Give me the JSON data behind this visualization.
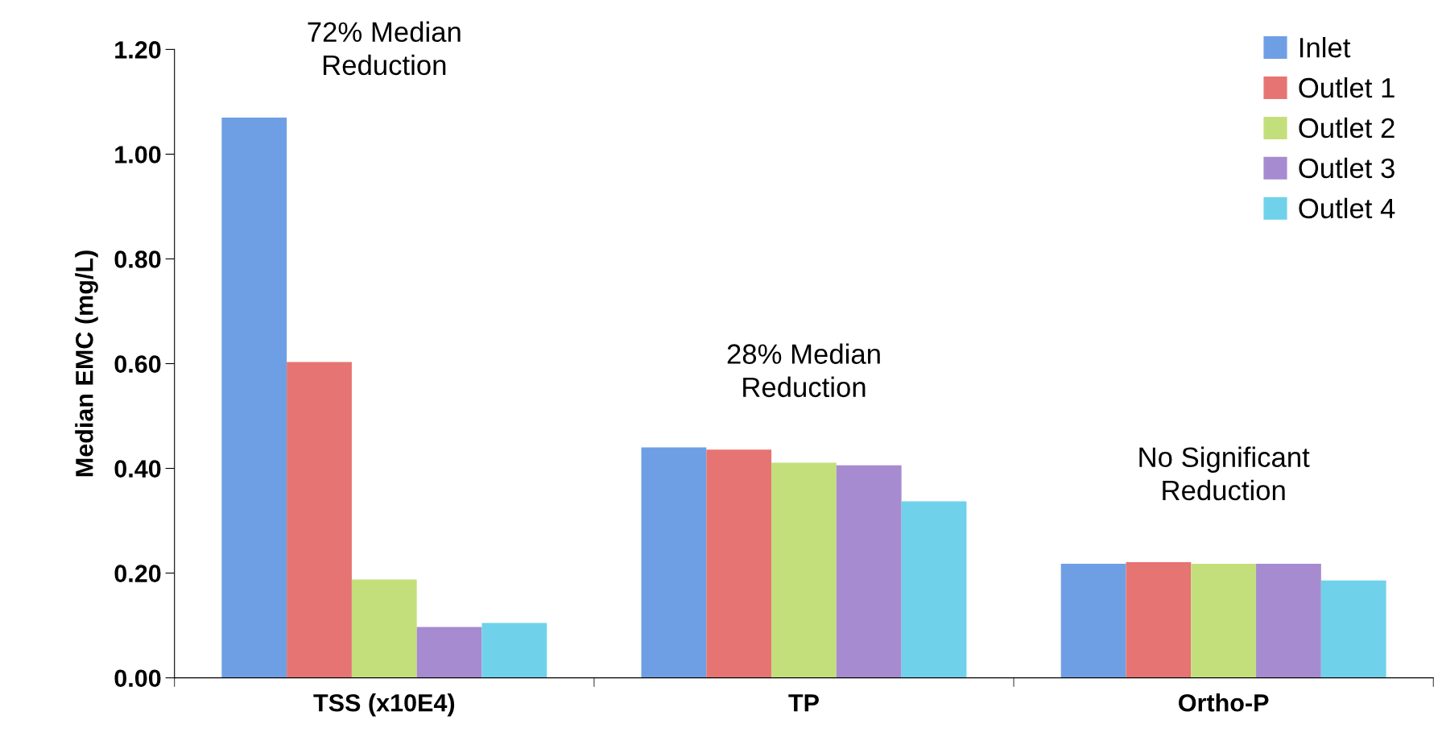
{
  "chart_data": {
    "type": "bar",
    "ylabel": "Median EMC (mg/L)",
    "categories": [
      "TSS (x10E4)",
      "TP",
      "Ortho-P"
    ],
    "series": [
      {
        "name": "Inlet",
        "color": "#6e9fe4",
        "values": [
          1.07,
          0.44,
          0.218
        ]
      },
      {
        "name": "Outlet 1",
        "color": "#e67472",
        "values": [
          0.603,
          0.436,
          0.221
        ]
      },
      {
        "name": "Outlet 2",
        "color": "#c3df7c",
        "values": [
          0.188,
          0.411,
          0.218
        ]
      },
      {
        "name": "Outlet 3",
        "color": "#a68bd0",
        "values": [
          0.097,
          0.406,
          0.218
        ]
      },
      {
        "name": "Outlet 4",
        "color": "#6fd2ea",
        "values": [
          0.105,
          0.337,
          0.186
        ]
      }
    ],
    "ylim": [
      0,
      1.2
    ],
    "yticks": [
      {
        "value": 0,
        "label": "0.00"
      },
      {
        "value": 0.2,
        "label": "0.20"
      },
      {
        "value": 0.4,
        "label": "0.40"
      },
      {
        "value": 0.6,
        "label": "0.60"
      },
      {
        "value": 0.8,
        "label": "0.80"
      },
      {
        "value": 1.0,
        "label": "1.00"
      },
      {
        "value": 1.2,
        "label": "1.20"
      }
    ],
    "annotations": [
      "72% Median\nReduction",
      "28% Median\nReduction",
      "No Significant\nReduction"
    ],
    "legend": "top right",
    "grid": false
  }
}
